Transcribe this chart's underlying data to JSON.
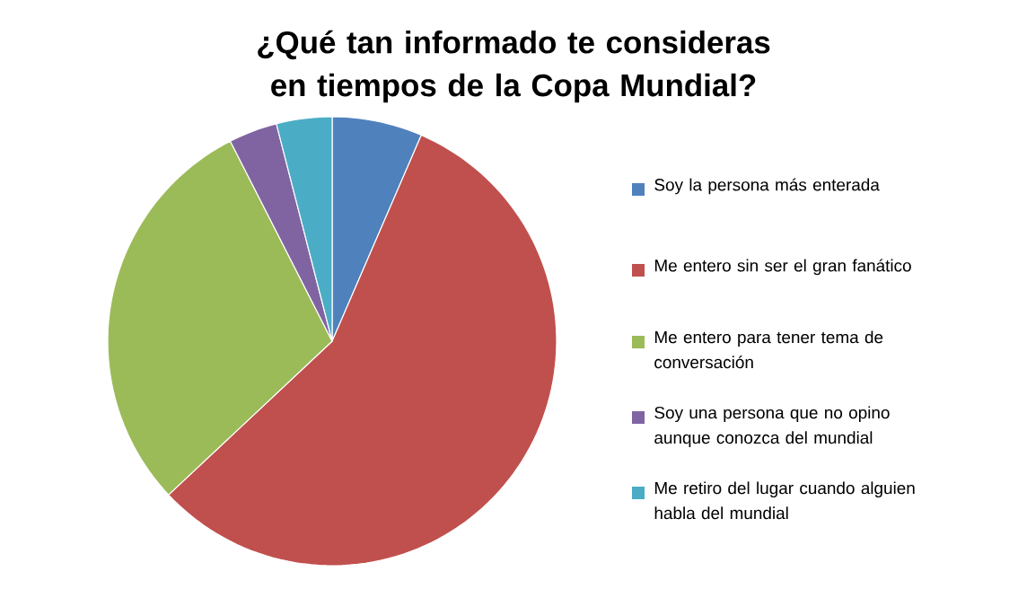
{
  "chart_data": {
    "type": "pie",
    "title": "¿Qué tan informado te consideras en tiempos de la Copa Mundial?",
    "categories": [
      "Soy la persona más enterada",
      "Me entero sin ser el gran fanático",
      "Me entero para tener tema de conversación",
      "Soy una persona que no opino aunque conozca del mundial",
      "Me retiro del lugar cuando alguien habla del mundial"
    ],
    "values": [
      6.5,
      56.5,
      29.5,
      3.5,
      4
    ],
    "colors": [
      "#4f81bd",
      "#c0504d",
      "#9bbb59",
      "#8064a2",
      "#4bacc6"
    ],
    "legend": "right"
  }
}
